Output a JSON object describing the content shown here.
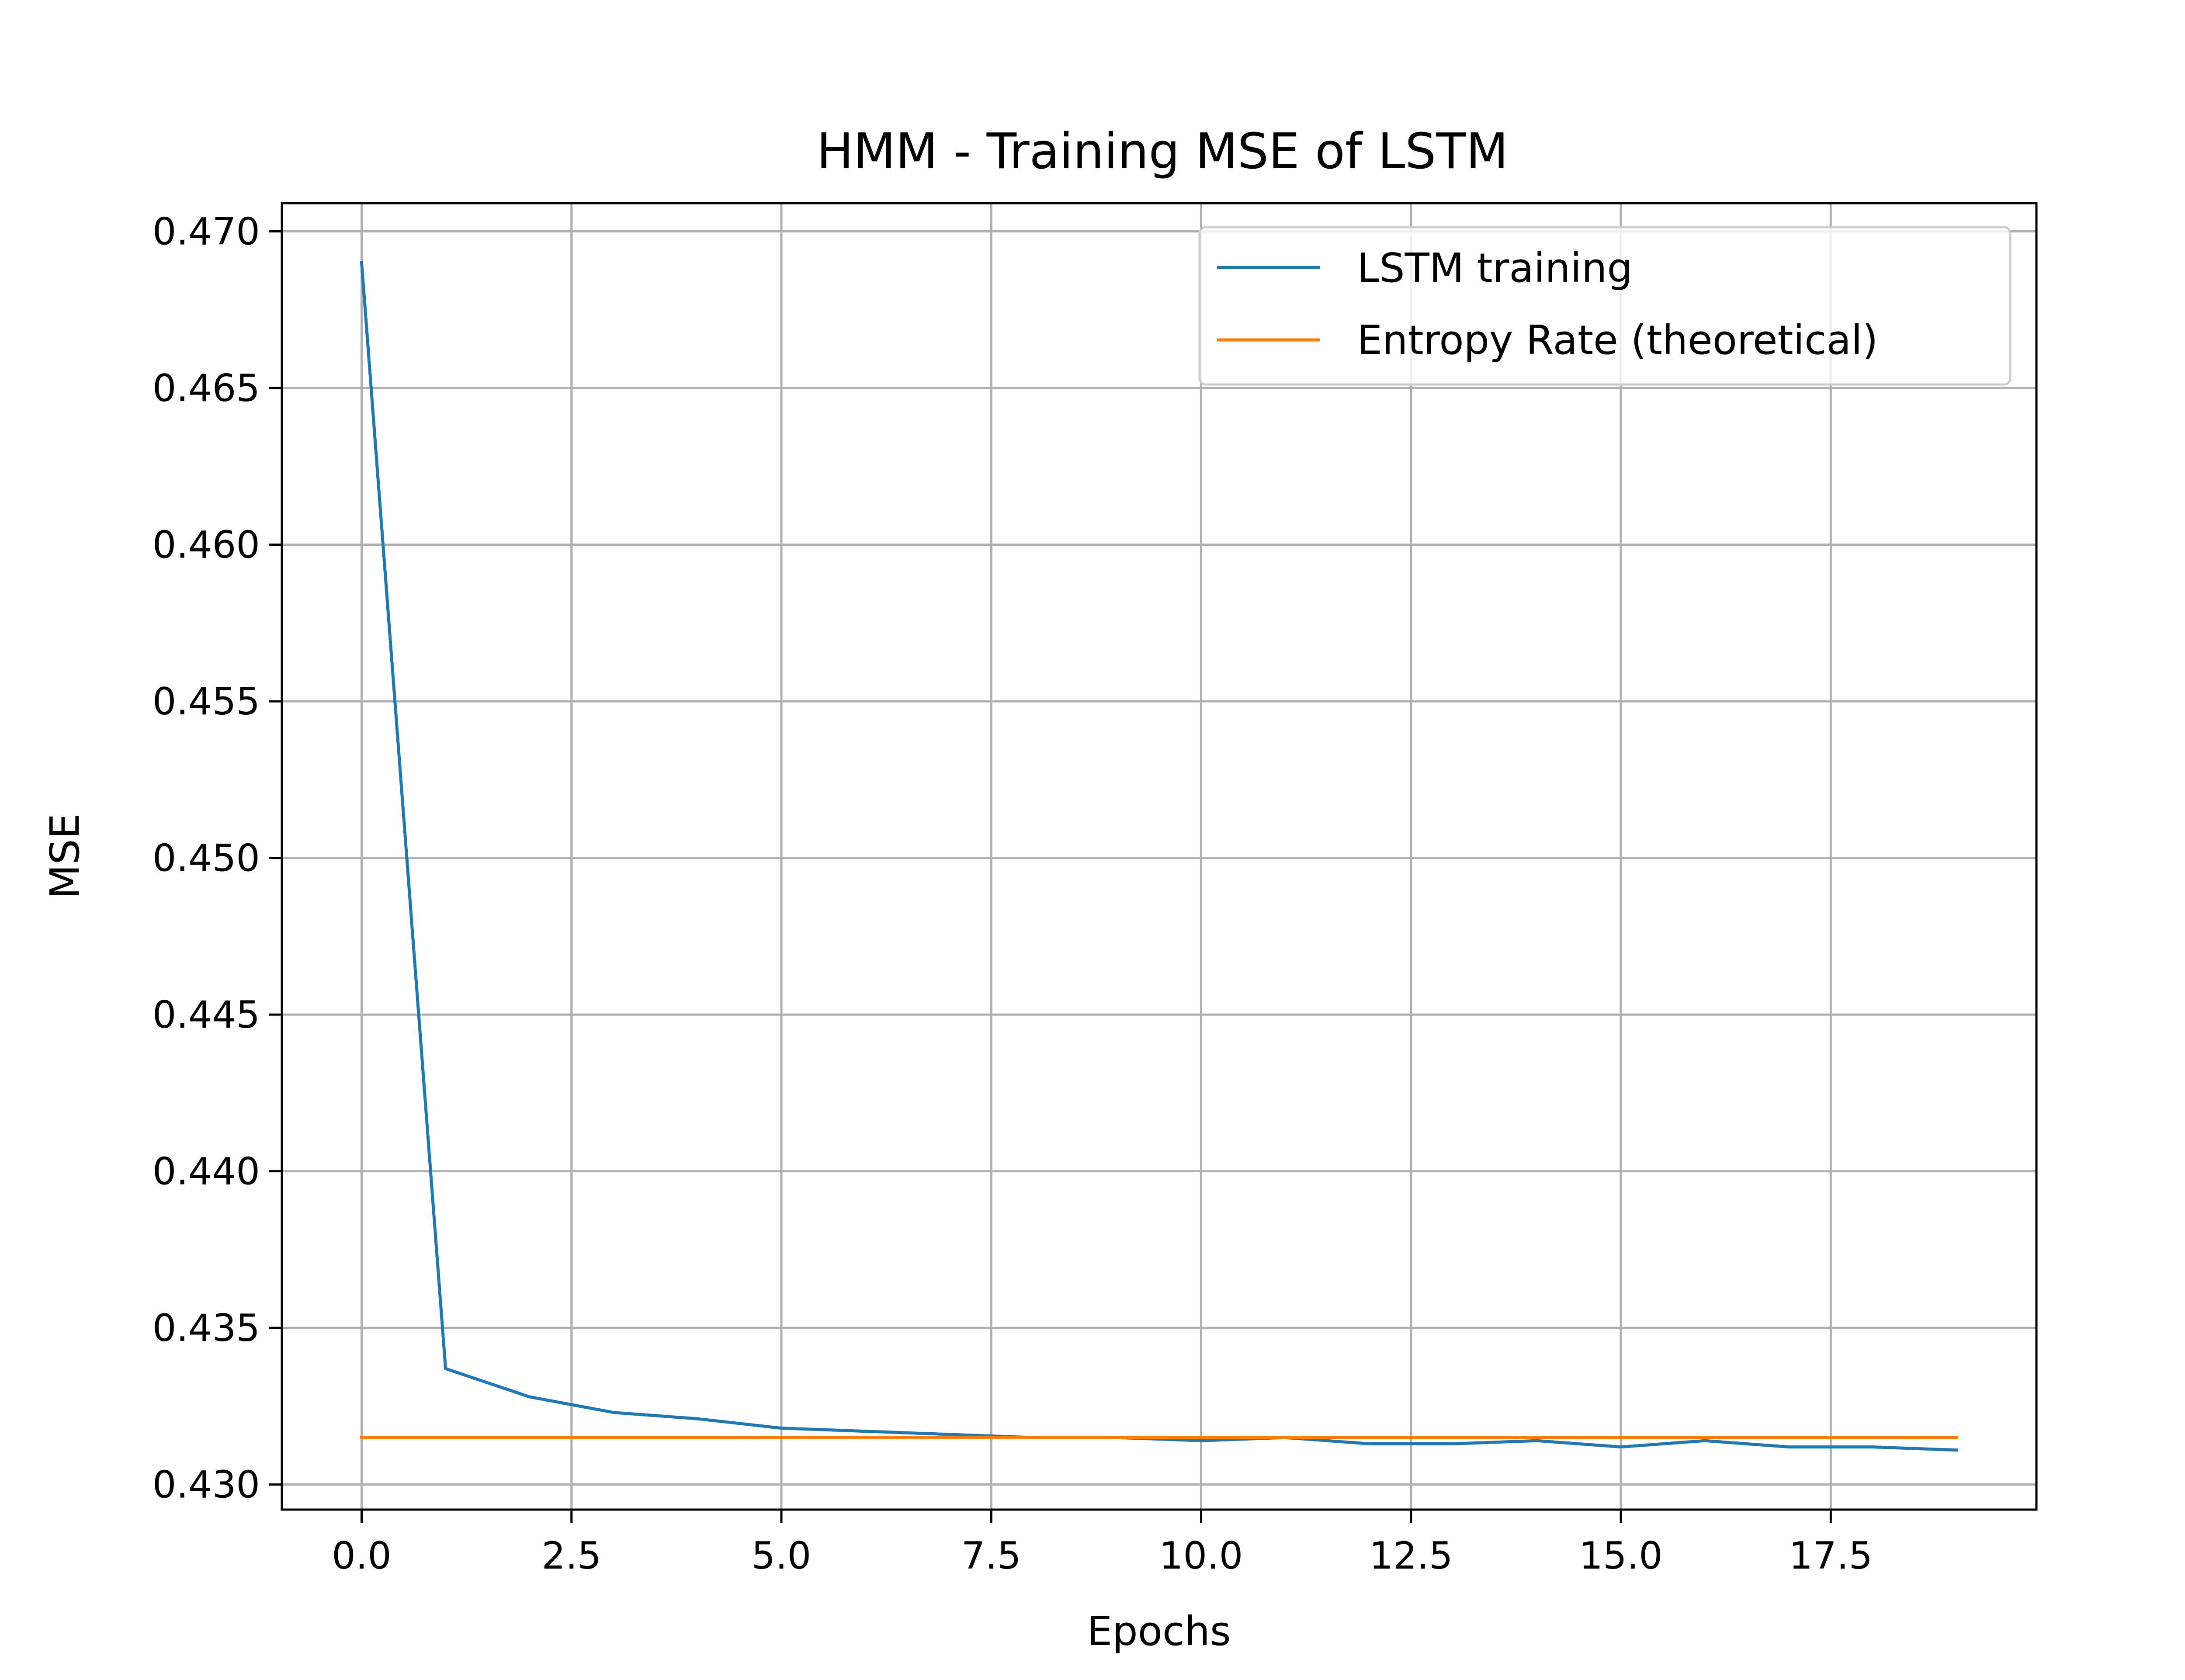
{
  "chart_data": {
    "type": "line",
    "title": "HMM - Training MSE of LSTM",
    "xlabel": "Epochs",
    "ylabel": "MSE",
    "xlim": [
      -0.95,
      19.95
    ],
    "ylim": [
      0.4292,
      0.4709
    ],
    "xticks": [
      0.0,
      2.5,
      5.0,
      7.5,
      10.0,
      12.5,
      15.0,
      17.5
    ],
    "xtick_labels": [
      "0.0",
      "2.5",
      "5.0",
      "7.5",
      "10.0",
      "12.5",
      "15.0",
      "17.5"
    ],
    "yticks": [
      0.43,
      0.435,
      0.44,
      0.445,
      0.45,
      0.455,
      0.46,
      0.465,
      0.47
    ],
    "ytick_labels": [
      "0.430",
      "0.435",
      "0.440",
      "0.445",
      "0.450",
      "0.455",
      "0.460",
      "0.465",
      "0.470"
    ],
    "grid": true,
    "legend_position": "top-right",
    "series": [
      {
        "name": "LSTM training",
        "color": "#1f77b4",
        "x": [
          0,
          1,
          2,
          3,
          4,
          5,
          6,
          7,
          8,
          9,
          10,
          11,
          12,
          13,
          14,
          15,
          16,
          17,
          18,
          19
        ],
        "y": [
          0.469,
          0.4337,
          0.4328,
          0.4323,
          0.4321,
          0.4318,
          0.4317,
          0.4316,
          0.4315,
          0.4315,
          0.4314,
          0.4315,
          0.4313,
          0.4313,
          0.4314,
          0.4312,
          0.4314,
          0.4312,
          0.4312,
          0.4311
        ]
      },
      {
        "name": "Entropy Rate (theoretical)",
        "color": "#ff7f0e",
        "x": [
          0,
          19
        ],
        "y": [
          0.4315,
          0.4315
        ]
      }
    ]
  }
}
